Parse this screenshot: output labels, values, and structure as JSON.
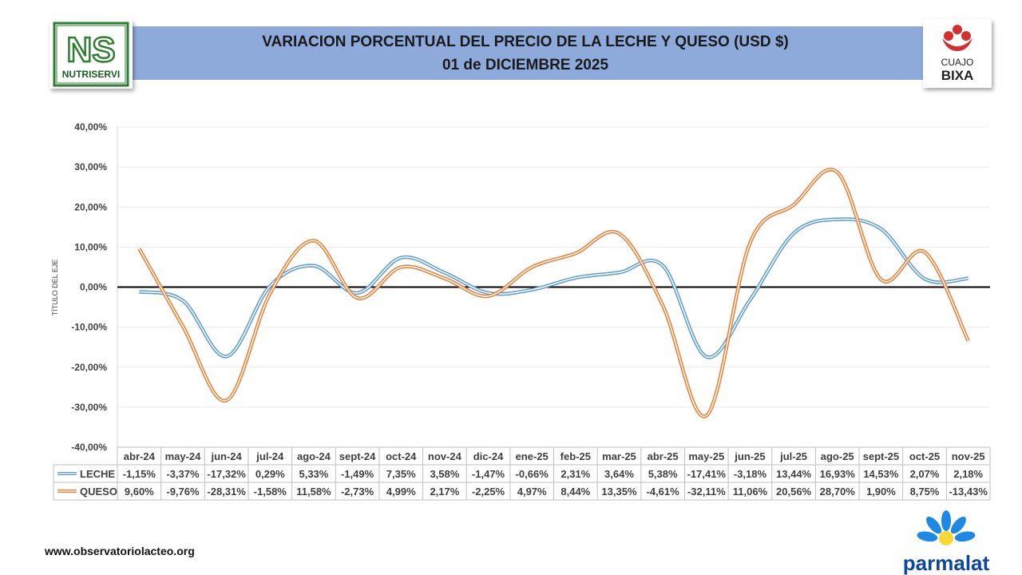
{
  "header": {
    "title_line1": "VARIACION PORCENTUAL DEL PRECIO DE LA LECHE Y QUESO (USD $)",
    "title_line2": "01 de DICIEMBRE 2025"
  },
  "logos": {
    "left_text": "NUTRISERVI",
    "right_text1": "CUAJO",
    "right_text2": "BIXA",
    "bottom_text": "parmalat"
  },
  "footer": {
    "url": "www.observatoriolacteo.org"
  },
  "colors": {
    "leche": "#5b9bd5",
    "queso": "#ed7d31",
    "banner": "#8eaadb"
  },
  "chart_data": {
    "type": "line",
    "title": "",
    "ylabel": "TÍTULO DEL EJE",
    "xlabel": "",
    "ylim": [
      -40,
      40
    ],
    "yticks": [
      "40,00%",
      "30,00%",
      "20,00%",
      "10,00%",
      "0,00%",
      "-10,00%",
      "-20,00%",
      "-30,00%",
      "-40,00%"
    ],
    "categories": [
      "abr-24",
      "may-24",
      "jun-24",
      "jul-24",
      "ago-24",
      "sept-24",
      "oct-24",
      "nov-24",
      "dic-24",
      "ene-25",
      "feb-25",
      "mar-25",
      "abr-25",
      "may-25",
      "jun-25",
      "jul-25",
      "ago-25",
      "sept-25",
      "oct-25",
      "nov-25"
    ],
    "series": [
      {
        "name": "LECHE",
        "values": [
          -1.15,
          -3.37,
          -17.32,
          0.29,
          5.33,
          -1.49,
          7.35,
          3.58,
          -1.47,
          -0.66,
          2.31,
          3.64,
          5.38,
          -17.41,
          -3.18,
          13.44,
          16.93,
          14.53,
          2.07,
          2.18
        ],
        "labels": [
          "-1,15%",
          "-3,37%",
          "-17,32%",
          "0,29%",
          "5,33%",
          "-1,49%",
          "7,35%",
          "3,58%",
          "-1,47%",
          "-0,66%",
          "2,31%",
          "3,64%",
          "5,38%",
          "-17,41%",
          "-3,18%",
          "13,44%",
          "16,93%",
          "14,53%",
          "2,07%",
          "2,18%"
        ]
      },
      {
        "name": "QUESO",
        "values": [
          9.6,
          -9.76,
          -28.31,
          -1.58,
          11.58,
          -2.73,
          4.99,
          2.17,
          -2.25,
          4.97,
          8.44,
          13.35,
          -4.61,
          -32.11,
          11.06,
          20.56,
          28.7,
          1.9,
          8.75,
          -13.43
        ],
        "labels": [
          "9,60%",
          "-9,76%",
          "-28,31%",
          "-1,58%",
          "11,58%",
          "-2,73%",
          "4,99%",
          "2,17%",
          "-2,25%",
          "4,97%",
          "8,44%",
          "13,35%",
          "-4,61%",
          "-32,11%",
          "11,06%",
          "20,56%",
          "28,70%",
          "1,90%",
          "8,75%",
          "-13,43%"
        ]
      }
    ],
    "grid": true,
    "legend": "table-bottom"
  }
}
